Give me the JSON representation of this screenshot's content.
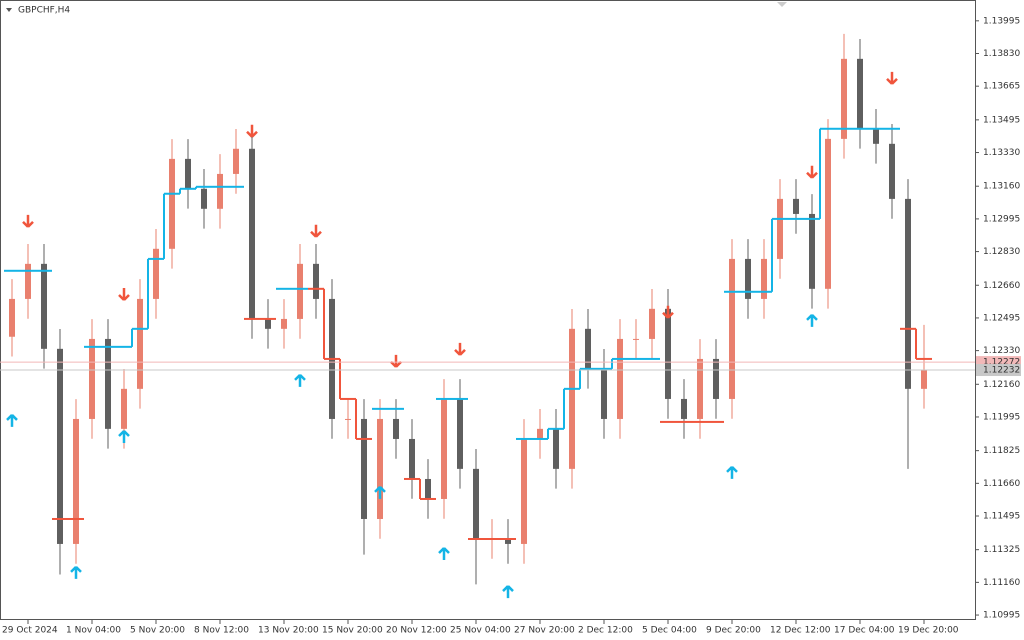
{
  "chart_data": {
    "type": "candlestick",
    "title": "GBPCHF,H4",
    "categories": [
      null,
      "29 Oct 2024",
      null,
      null,
      null,
      "1 Nov 04:00",
      null,
      null,
      null,
      "5 Nov 20:00",
      null,
      null,
      null,
      "8 Nov 12:00",
      null,
      null,
      null,
      "13 Nov 20:00",
      null,
      null,
      null,
      "15 Nov 20:00",
      null,
      null,
      null,
      "20 Nov 12:00",
      null,
      null,
      null,
      "25 Nov 04:00",
      null,
      null,
      null,
      "27 Nov 20:00",
      null,
      null,
      null,
      "2 Dec 12:00",
      null,
      null,
      null,
      "5 Dec 04:00",
      null,
      null,
      null,
      "9 Dec 20:00",
      null,
      null,
      null,
      "12 Dec 12:00",
      null,
      null,
      null,
      "17 Dec 04:00",
      null,
      null,
      null,
      "19 Dec 20:00"
    ],
    "open": [
      1.124,
      1.12591,
      1.12768,
      1.12339,
      1.11354,
      1.11985,
      1.12389,
      1.11935,
      1.12137,
      1.12591,
      1.12844,
      1.13298,
      1.13147,
      1.13046,
      1.13222,
      1.13349,
      1.1249,
      1.1244,
      1.1249,
      1.12768,
      1.12591,
      1.11985,
      1.11985,
      1.1148,
      1.11985,
      1.11884,
      1.11682,
      1.11581,
      1.12086,
      1.11733,
      1.11379,
      1.11379,
      1.11354,
      1.11884,
      1.11935,
      1.11733,
      1.1244,
      1.12238,
      1.11985,
      1.12389,
      1.12389,
      1.12541,
      1.12086,
      1.11985,
      1.12288,
      1.12086,
      1.12793,
      1.12591,
      1.12793,
      1.13096,
      1.1302,
      1.12642,
      1.13399,
      1.13803,
      1.1345,
      1.13374,
      1.13096,
      1.12137
    ],
    "high": [
      1.12691,
      1.12868,
      1.12868,
      1.12439,
      1.12085,
      1.12489,
      1.12489,
      1.12237,
      1.12691,
      1.12944,
      1.13398,
      1.13398,
      1.13247,
      1.13322,
      1.13449,
      1.13449,
      1.1259,
      1.1259,
      1.12868,
      1.12868,
      1.12691,
      1.12085,
      1.12085,
      1.12085,
      1.12085,
      1.11984,
      1.11782,
      1.12186,
      1.12186,
      1.11833,
      1.11479,
      1.11479,
      1.11984,
      1.12035,
      1.12035,
      1.1254,
      1.1254,
      1.12338,
      1.12489,
      1.12489,
      1.12641,
      1.12641,
      1.12186,
      1.12388,
      1.12388,
      1.12893,
      1.12893,
      1.12893,
      1.13196,
      1.13196,
      1.1312,
      1.13499,
      1.13929,
      1.13903,
      1.1355,
      1.13474,
      1.13196,
      1.1246
    ],
    "low": [
      1.123,
      1.12491,
      1.12239,
      1.112,
      1.11254,
      1.11885,
      1.11835,
      1.11835,
      1.12037,
      1.12491,
      1.12744,
      1.13047,
      1.12946,
      1.12946,
      1.13122,
      1.1239,
      1.1234,
      1.1234,
      1.1239,
      1.12491,
      1.11885,
      1.11885,
      1.113,
      1.1138,
      1.11784,
      1.11582,
      1.11481,
      1.11481,
      1.11633,
      1.1115,
      1.11279,
      1.11254,
      1.11254,
      1.11784,
      1.11633,
      1.11633,
      1.12138,
      1.11885,
      1.11885,
      1.12289,
      1.12289,
      1.11986,
      1.11885,
      1.11885,
      1.11986,
      1.11986,
      1.12491,
      1.12491,
      1.12693,
      1.1292,
      1.12542,
      1.12542,
      1.13299,
      1.1335,
      1.13274,
      1.12996,
      1.11733,
      1.12037
    ],
    "close": [
      1.12591,
      1.12768,
      1.12339,
      1.11354,
      1.11985,
      1.12389,
      1.11935,
      1.12137,
      1.12591,
      1.12844,
      1.13298,
      1.13147,
      1.13046,
      1.13222,
      1.13349,
      1.1249,
      1.1244,
      1.1249,
      1.12768,
      1.12591,
      1.11985,
      1.11985,
      1.1148,
      1.11985,
      1.11884,
      1.11682,
      1.11581,
      1.12086,
      1.11733,
      1.11379,
      1.11379,
      1.11354,
      1.11884,
      1.11935,
      1.11733,
      1.1244,
      1.12238,
      1.11985,
      1.12389,
      1.12389,
      1.12541,
      1.12086,
      1.11985,
      1.12288,
      1.12086,
      1.12793,
      1.12591,
      1.12793,
      1.13096,
      1.1302,
      1.12642,
      1.13399,
      1.13803,
      1.1345,
      1.13374,
      1.13096,
      1.12137,
      1.12232
    ],
    "up_color": "#e9806e",
    "down_color": "#5f5f5f",
    "series": [
      {
        "color": "#14b4e6",
        "values": [
          1.12733,
          1.12733,
          1.12733,
          null,
          null,
          1.12349,
          1.12349,
          1.12349,
          1.1244,
          1.12793,
          1.13122,
          1.13147,
          1.13157,
          1.13157,
          1.13157,
          null,
          null,
          1.12642,
          1.12642,
          null,
          null,
          null,
          null,
          1.12036,
          1.12036,
          null,
          null,
          1.12086,
          1.12086,
          null,
          null,
          null,
          1.11884,
          1.11884,
          1.11935,
          1.12137,
          1.12238,
          1.12238,
          1.12288,
          1.12288,
          1.12288,
          null,
          null,
          null,
          null,
          1.12627,
          1.12627,
          1.12627,
          1.12995,
          1.12995,
          1.12995,
          1.1345,
          1.1345,
          1.1345,
          1.1345,
          1.1345,
          null,
          null
        ]
      },
      {
        "color": "#f0553c",
        "values": [
          null,
          null,
          null,
          1.1148,
          1.1148,
          null,
          null,
          null,
          null,
          null,
          null,
          null,
          null,
          null,
          null,
          1.1249,
          1.1249,
          null,
          null,
          1.12642,
          1.12288,
          1.12086,
          1.11884,
          null,
          null,
          1.11682,
          1.11581,
          null,
          null,
          1.11379,
          1.11379,
          1.11379,
          null,
          null,
          null,
          null,
          null,
          null,
          null,
          null,
          null,
          1.1197,
          1.1197,
          1.1197,
          1.1197,
          null,
          null,
          null,
          null,
          null,
          null,
          null,
          null,
          null,
          null,
          null,
          1.1244,
          1.12288
        ]
      }
    ],
    "up_arrows": {
      "color": "#14b4e6",
      "x": [
        0,
        4,
        7,
        18,
        23,
        27,
        31,
        45,
        50
      ],
      "y": [
        1.11975,
        1.11208,
        1.11894,
        1.12177,
        1.11612,
        1.11303,
        1.11111,
        1.11713,
        1.1248
      ]
    },
    "down_arrows": {
      "color": "#f0553c",
      "x": [
        1,
        7,
        15,
        19,
        24,
        28,
        41,
        50,
        55
      ],
      "y": [
        1.12985,
        1.12616,
        1.1344,
        1.12935,
        1.12278,
        1.12339,
        1.12526,
        1.13233,
        1.13707
      ]
    },
    "price_lines": [
      {
        "value": 1.12272,
        "color": "#f2b8b8"
      },
      {
        "value": 1.12232,
        "color": "#c8c8c8"
      }
    ],
    "ylim": [
      1.1097,
      1.1409
    ],
    "yticks": [
      1.13995,
      {
        "value": 1.1383,
        "label": "1.13830"
      },
      1.13665,
      1.13495,
      {
        "value": 1.1333,
        "label": "1.13330"
      },
      {
        "value": 1.1316,
        "label": "1.13160"
      },
      1.12995,
      {
        "value": 1.1283,
        "label": "1.12830"
      },
      {
        "value": 1.1266,
        "label": "1.12660"
      },
      1.12495,
      {
        "value": 1.1233,
        "label": "1.12330"
      },
      {
        "value": 1.1216,
        "label": "1.12160"
      },
      1.11995,
      1.11825,
      {
        "value": 1.1166,
        "label": "1.11660"
      },
      1.11495,
      1.11325,
      {
        "value": 1.1116,
        "label": "1.11160"
      },
      1.10995
    ]
  }
}
